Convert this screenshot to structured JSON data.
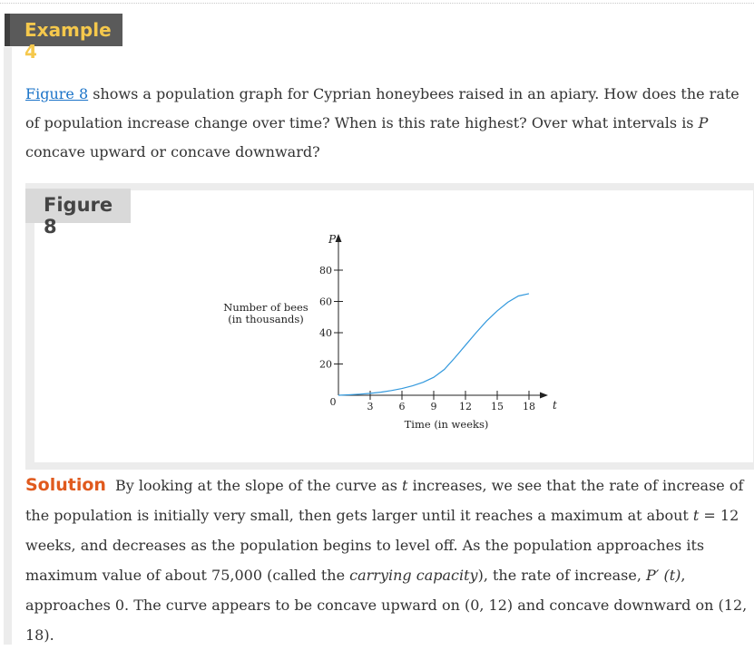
{
  "example": {
    "label": "Example 4"
  },
  "intro": {
    "link_text": "Figure 8",
    "text1": " shows a population graph for Cyprian honeybees raised in an apiary. How does the rate of population increase change over time? When is this rate highest? Over what intervals is ",
    "var_p": "P",
    "text2": " concave upward or concave downward?"
  },
  "figure": {
    "label": "Figure 8"
  },
  "chart_data": {
    "type": "line",
    "title": "",
    "xlabel": "Time (in weeks)",
    "ylabel": "Number of bees (in thousands)",
    "y_axis_letter": "P",
    "x_axis_letter": "t",
    "origin_label": "0",
    "xlim": [
      0,
      18
    ],
    "ylim": [
      0,
      80
    ],
    "x_ticks": [
      3,
      6,
      9,
      12,
      15,
      18
    ],
    "y_ticks": [
      20,
      40,
      60,
      80
    ],
    "series": [
      {
        "color": "#3399dd",
        "x": [
          0,
          1,
          2,
          3,
          4,
          5,
          6,
          7,
          8,
          9,
          10,
          11,
          12,
          13,
          14,
          15,
          16,
          17,
          18
        ],
        "y": [
          0,
          0.3,
          0.7,
          1.2,
          2,
          3,
          4.3,
          6,
          8.3,
          11.5,
          16.5,
          24,
          32,
          40,
          47.5,
          54,
          59.5,
          63.5,
          65
        ]
      }
    ]
  },
  "solution": {
    "label": "Solution",
    "t1": "By looking at the slope of the curve as ",
    "v_t": "t",
    "t2": " increases, we see that the rate of increase of the population is initially very small, then gets larger until it reaches a maximum at about ",
    "v_t2": "t",
    "t3": " = 12 weeks, and decreases as the population begins to level off. As the population approaches its maximum value of about 75,000 (called the ",
    "italic": "carrying capacity",
    "t4": "), the rate of increase, ",
    "deriv": "P′ (t)",
    "t5": ", approaches 0. The curve appears to be concave upward on (0, 12) and concave downward on (12, 18)."
  }
}
